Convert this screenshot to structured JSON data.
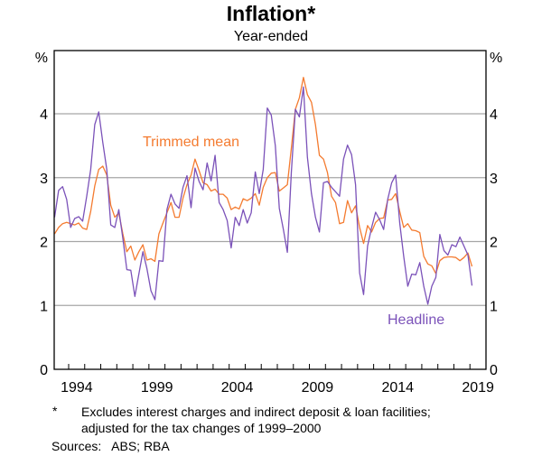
{
  "chart_data": {
    "type": "line",
    "title": "Inflation*",
    "subtitle": "Year-ended",
    "ylabel_left": "%",
    "ylabel_right": "%",
    "ylim": [
      0,
      5
    ],
    "yticks": [
      0,
      1,
      2,
      3,
      4
    ],
    "xlim": [
      1993.1,
      2020.0
    ],
    "xtick_labels": [
      "1994",
      "1999",
      "2004",
      "2009",
      "2014",
      "2019"
    ],
    "grid": true,
    "x": [
      1993.125,
      1993.375,
      1993.625,
      1993.875,
      1994.125,
      1994.375,
      1994.625,
      1994.875,
      1995.125,
      1995.375,
      1995.625,
      1995.875,
      1996.125,
      1996.375,
      1996.625,
      1996.875,
      1997.125,
      1997.375,
      1997.625,
      1997.875,
      1998.125,
      1998.375,
      1998.625,
      1998.875,
      1999.125,
      1999.375,
      1999.625,
      1999.875,
      2000.125,
      2000.375,
      2000.625,
      2000.875,
      2001.125,
      2001.375,
      2001.625,
      2001.875,
      2002.125,
      2002.375,
      2002.625,
      2002.875,
      2003.125,
      2003.375,
      2003.625,
      2003.875,
      2004.125,
      2004.375,
      2004.625,
      2004.875,
      2005.125,
      2005.375,
      2005.625,
      2005.875,
      2006.125,
      2006.375,
      2006.625,
      2006.875,
      2007.125,
      2007.375,
      2007.625,
      2007.875,
      2008.125,
      2008.375,
      2008.625,
      2008.875,
      2009.125,
      2009.375,
      2009.625,
      2009.875,
      2010.125,
      2010.375,
      2010.625,
      2010.875,
      2011.125,
      2011.375,
      2011.625,
      2011.875,
      2012.125,
      2012.375,
      2012.625,
      2012.875,
      2013.125,
      2013.375,
      2013.625,
      2013.875,
      2014.125,
      2014.375,
      2014.625,
      2014.875,
      2015.125,
      2015.375,
      2015.625,
      2015.875,
      2016.125,
      2016.375,
      2016.625,
      2016.875,
      2017.125,
      2017.375,
      2017.625,
      2017.875,
      2018.125,
      2018.375,
      2018.625,
      2018.875,
      2019.125
    ],
    "series": [
      {
        "name": "Trimmed mean",
        "color": "#f47b30",
        "values": [
          2.12,
          2.22,
          2.28,
          2.3,
          2.28,
          2.26,
          2.29,
          2.21,
          2.19,
          2.47,
          2.87,
          3.13,
          3.18,
          3.04,
          2.57,
          2.38,
          2.45,
          2.12,
          1.84,
          1.93,
          1.71,
          1.84,
          1.95,
          1.71,
          1.73,
          1.69,
          2.12,
          2.29,
          2.45,
          2.61,
          2.38,
          2.38,
          2.68,
          2.89,
          3.04,
          3.29,
          3.11,
          2.92,
          2.89,
          2.79,
          2.82,
          2.74,
          2.74,
          2.68,
          2.5,
          2.54,
          2.51,
          2.67,
          2.64,
          2.68,
          2.75,
          2.57,
          2.85,
          3.0,
          3.07,
          3.08,
          2.79,
          2.84,
          2.89,
          3.46,
          4.07,
          4.25,
          4.57,
          4.3,
          4.18,
          3.83,
          3.35,
          3.29,
          3.08,
          2.71,
          2.61,
          2.28,
          2.3,
          2.64,
          2.45,
          2.56,
          2.22,
          1.97,
          2.25,
          2.15,
          2.3,
          2.36,
          2.37,
          2.65,
          2.66,
          2.75,
          2.47,
          2.22,
          2.28,
          2.18,
          2.17,
          2.14,
          1.77,
          1.65,
          1.62,
          1.5,
          1.7,
          1.75,
          1.76,
          1.76,
          1.75,
          1.7,
          1.75,
          1.82,
          1.61
        ]
      },
      {
        "name": "Headline",
        "color": "#7b52b9",
        "values": [
          2.38,
          2.8,
          2.86,
          2.66,
          2.22,
          2.36,
          2.39,
          2.32,
          2.71,
          3.13,
          3.83,
          4.03,
          3.55,
          3.13,
          2.26,
          2.22,
          2.5,
          2.05,
          1.56,
          1.55,
          1.14,
          1.49,
          1.84,
          1.58,
          1.23,
          1.09,
          1.7,
          1.69,
          2.5,
          2.74,
          2.59,
          2.52,
          2.85,
          3.03,
          2.53,
          3.15,
          2.94,
          2.81,
          3.23,
          2.95,
          3.35,
          2.61,
          2.5,
          2.33,
          1.9,
          2.38,
          2.25,
          2.5,
          2.29,
          2.45,
          3.09,
          2.75,
          3.13,
          4.09,
          3.98,
          3.5,
          2.52,
          2.19,
          1.83,
          3.08,
          4.07,
          3.95,
          4.42,
          3.32,
          2.75,
          2.38,
          2.15,
          2.92,
          2.94,
          2.85,
          2.78,
          2.71,
          3.29,
          3.51,
          3.36,
          2.89,
          1.51,
          1.17,
          1.93,
          2.22,
          2.46,
          2.34,
          2.19,
          2.66,
          2.92,
          3.04,
          2.29,
          1.77,
          1.3,
          1.49,
          1.48,
          1.67,
          1.3,
          1.02,
          1.3,
          1.44,
          2.11,
          1.86,
          1.79,
          1.95,
          1.92,
          2.07,
          1.93,
          1.79,
          1.31
        ]
      }
    ]
  },
  "footnote": {
    "marker": "*",
    "text_line1": "Excludes interest charges and indirect deposit & loan facilities;",
    "text_line2": "adjusted for the tax changes of 1999–2000"
  },
  "sources": "Sources:   ABS; RBA"
}
